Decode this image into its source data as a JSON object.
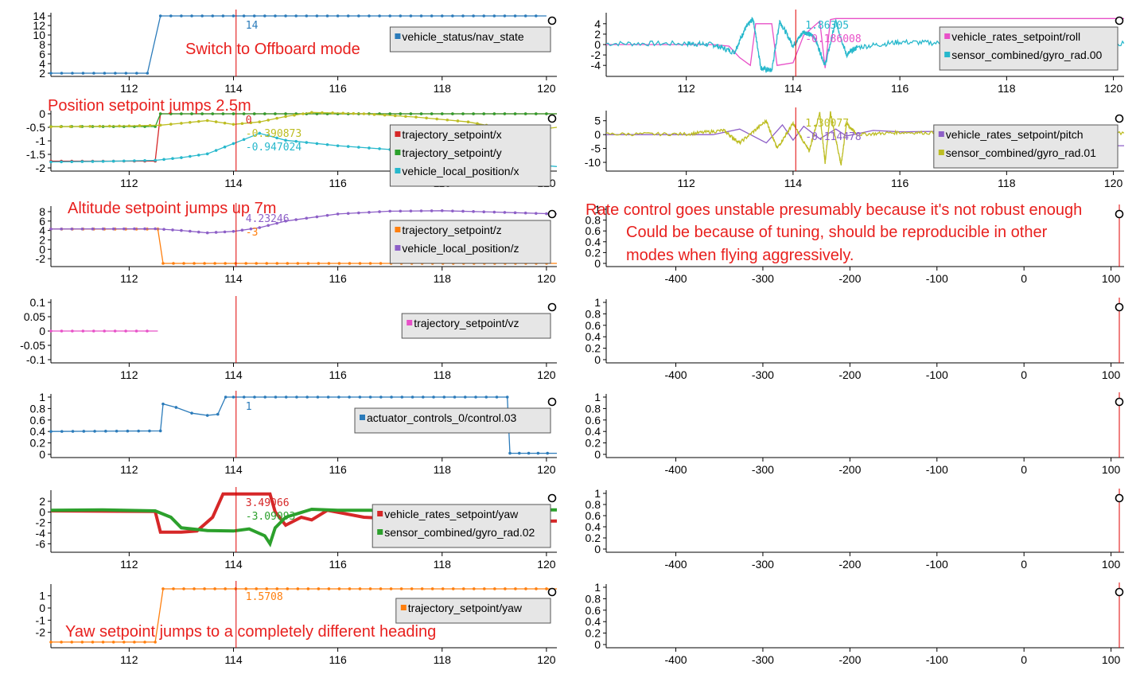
{
  "cursor_time": 114.05,
  "colors": {
    "blue": "#2b7bba",
    "red": "#d62728",
    "green": "#2ca02c",
    "cyan": "#27b8cc",
    "olive": "#bdbd22",
    "orange": "#ff7f0e",
    "purple": "#8d5fc7",
    "pink": "#e850c8",
    "annotation": "#e8201e",
    "cursor": "#e00000"
  },
  "annotations": [
    "Switch to Offboard mode",
    "Position setpoint jumps 2.5m",
    "Altitude setpoint jumps up 7m",
    "Yaw setpoint jumps to a completely different heading",
    "Rate control goes unstable presumably because it's not robust enough",
    "Could be because of tuning, should be reproducible in other",
    "modes when flying aggressively."
  ],
  "chart_data": [
    {
      "id": "L1",
      "type": "line",
      "xlim": [
        110.5,
        120.2
      ],
      "ylim": [
        2,
        14
      ],
      "xticks": [
        "112",
        "114",
        "116",
        "118",
        "120"
      ],
      "yticks": [
        "14",
        "12",
        "10",
        "8",
        "6",
        "4",
        "2"
      ],
      "series": [
        {
          "name": "vehicle_status/nav_state",
          "color": "blue",
          "step": true,
          "markers": true,
          "x": [
            110.5,
            112.35,
            112.6,
            120.0
          ],
          "y": [
            2,
            2,
            14,
            14
          ]
        }
      ],
      "cursor_labels": [
        {
          "text": "14",
          "color": "blue"
        }
      ]
    },
    {
      "id": "L2",
      "type": "line",
      "xlim": [
        110.5,
        120.2
      ],
      "ylim": [
        -2,
        0
      ],
      "xticks": [
        "112",
        "114",
        "116",
        "118",
        "120"
      ],
      "yticks": [
        "0",
        "-0.5",
        "-1",
        "-1.5",
        "-2"
      ],
      "series": [
        {
          "name": "trajectory_setpoint/x",
          "color": "red",
          "markers": true,
          "x": [
            110.5,
            112.5,
            112.6,
            120.2
          ],
          "y": [
            -1.75,
            -1.75,
            0,
            0
          ]
        },
        {
          "name": "trajectory_setpoint/y",
          "color": "green",
          "markers": true,
          "x": [
            110.5,
            112.5,
            112.6,
            120.2
          ],
          "y": [
            -0.47,
            -0.47,
            0,
            0
          ]
        },
        {
          "name": "vehicle_local_position/x",
          "color": "cyan",
          "markers": true,
          "x": [
            110.5,
            111.5,
            112.5,
            113.0,
            113.5,
            114.0,
            114.2,
            114.5,
            115.0,
            116.0,
            117.0,
            118.0,
            119.0,
            120.2
          ],
          "y": [
            -1.78,
            -1.76,
            -1.72,
            -1.62,
            -1.48,
            -1.1,
            -0.95,
            -0.72,
            -0.98,
            -1.18,
            -1.32,
            -1.5,
            -1.75,
            -1.95
          ]
        },
        {
          "name": "",
          "color": "olive",
          "markers": true,
          "x": [
            110.5,
            112.0,
            112.6,
            113.0,
            113.5,
            114.0,
            114.5,
            115.0,
            115.5,
            116.5,
            117.5,
            118.5,
            119.2,
            119.7,
            120.2
          ],
          "y": [
            -0.48,
            -0.45,
            -0.42,
            -0.35,
            -0.25,
            -0.39,
            -0.3,
            -0.1,
            0.05,
            0.0,
            -0.12,
            -0.3,
            -0.55,
            -0.62,
            -0.5
          ]
        }
      ],
      "cursor_labels": [
        {
          "text": "0",
          "color": "red"
        },
        {
          "text": "-0.390873",
          "color": "olive"
        },
        {
          "text": "-0.947024",
          "color": "cyan"
        }
      ]
    },
    {
      "id": "L3",
      "type": "line",
      "xlim": [
        110.5,
        120.2
      ],
      "ylim": [
        -3,
        8.5
      ],
      "xticks": [
        "112",
        "114",
        "116",
        "118",
        "120"
      ],
      "yticks": [
        "8",
        "6",
        "4",
        "2",
        "0",
        "-2"
      ],
      "series": [
        {
          "name": "trajectory_setpoint/z",
          "color": "orange",
          "markers": true,
          "x": [
            110.5,
            112.55,
            112.65,
            120.2
          ],
          "y": [
            4.3,
            4.3,
            -3,
            -3
          ]
        },
        {
          "name": "vehicle_local_position/z",
          "color": "purple",
          "markers": true,
          "x": [
            110.5,
            112.5,
            113.0,
            113.5,
            114.0,
            114.5,
            115.0,
            116.0,
            117.0,
            118.0,
            119.0,
            120.2
          ],
          "y": [
            4.3,
            4.35,
            4.0,
            3.5,
            3.8,
            4.6,
            6.0,
            7.5,
            8.1,
            8.2,
            7.9,
            7.5
          ]
        }
      ],
      "cursor_labels": [
        {
          "text": "4.23246",
          "color": "purple"
        },
        {
          "text": "-3",
          "color": "orange"
        }
      ]
    },
    {
      "id": "L4",
      "type": "line",
      "xlim": [
        110.5,
        120.2
      ],
      "ylim": [
        -0.1,
        0.1
      ],
      "xticks": [
        "112",
        "114",
        "116",
        "118",
        "120"
      ],
      "yticks": [
        "0.1",
        "0.05",
        "0",
        "-0.05",
        "-0.1"
      ],
      "series": [
        {
          "name": "trajectory_setpoint/vz",
          "color": "pink",
          "markers": true,
          "x": [
            110.5,
            112.55
          ],
          "y": [
            0,
            0
          ]
        }
      ],
      "cursor_labels": []
    },
    {
      "id": "L5",
      "type": "line",
      "xlim": [
        110.5,
        120.2
      ],
      "ylim": [
        0,
        1
      ],
      "xticks": [
        "112",
        "114",
        "116",
        "118",
        "120"
      ],
      "yticks": [
        "1",
        "0.8",
        "0.6",
        "0.4",
        "0.2",
        "0"
      ],
      "series": [
        {
          "name": "actuator_controls_0/control.03",
          "color": "blue",
          "markers": true,
          "x": [
            110.5,
            112.6,
            112.65,
            112.9,
            113.2,
            113.5,
            113.7,
            113.85,
            114.0,
            119.25,
            119.3,
            120.2
          ],
          "y": [
            0.4,
            0.41,
            0.88,
            0.82,
            0.72,
            0.68,
            0.7,
            1.0,
            1.0,
            1.0,
            0.02,
            0.02
          ]
        }
      ],
      "cursor_labels": [
        {
          "text": "1",
          "color": "blue"
        }
      ]
    },
    {
      "id": "L6",
      "type": "line",
      "xlim": [
        110.5,
        120.2
      ],
      "ylim": [
        -7,
        3.5
      ],
      "xticks": [
        "112",
        "114",
        "116",
        "118",
        "120"
      ],
      "yticks": [
        "2",
        "0",
        "-2",
        "-4",
        "-6"
      ],
      "series": [
        {
          "name": "vehicle_rates_setpoint/yaw",
          "color": "red",
          "thick": true,
          "x": [
            110.5,
            112.5,
            112.6,
            113.0,
            113.3,
            113.6,
            113.8,
            114.2,
            114.5,
            114.7,
            114.8,
            115.0,
            115.3,
            115.5,
            115.8,
            116.5,
            117.5,
            118.5,
            119.5,
            120.2
          ],
          "y": [
            0.2,
            0.1,
            -3.8,
            -3.8,
            -3.6,
            -1.0,
            3.4,
            3.4,
            3.4,
            3.4,
            0.0,
            -2.5,
            -1.0,
            -1.5,
            0.3,
            -1.0,
            -1.5,
            -1.6,
            -1.8,
            -1.7
          ]
        },
        {
          "name": "sensor_combined/gyro_rad.02",
          "color": "green",
          "thick": true,
          "x": [
            110.5,
            111.5,
            112.5,
            112.8,
            113.0,
            113.5,
            114.0,
            114.3,
            114.6,
            114.7,
            114.8,
            115.0,
            115.5,
            116.0,
            117.0,
            118.0,
            119.0,
            120.2
          ],
          "y": [
            0.3,
            0.4,
            0.2,
            -1.0,
            -3.0,
            -3.5,
            -3.6,
            -3.2,
            -4.5,
            -6.0,
            -3.0,
            -1.0,
            0.5,
            0.3,
            0.3,
            0.4,
            0.4,
            0.4
          ]
        }
      ],
      "cursor_labels": [
        {
          "text": "3.49066",
          "color": "red"
        },
        {
          "text": "-3.09093",
          "color": "green"
        }
      ]
    },
    {
      "id": "L7",
      "type": "line",
      "xlim": [
        110.5,
        120.2
      ],
      "ylim": [
        -3,
        1.7
      ],
      "xticks": [
        "112",
        "114",
        "116",
        "118",
        "120"
      ],
      "yticks": [
        "1",
        "0",
        "-1",
        "-2"
      ],
      "series": [
        {
          "name": "trajectory_setpoint/yaw",
          "color": "orange",
          "markers": true,
          "x": [
            110.5,
            112.5,
            112.65,
            120.2
          ],
          "y": [
            -2.8,
            -2.8,
            1.5708,
            1.5708
          ]
        }
      ],
      "cursor_labels": [
        {
          "text": "1.5708",
          "color": "orange"
        }
      ]
    },
    {
      "id": "R1",
      "type": "line",
      "xlim": [
        110.5,
        120.2
      ],
      "ylim": [
        -5.5,
        5.5
      ],
      "xticks": [
        "112",
        "114",
        "116",
        "118",
        "120"
      ],
      "yticks": [
        "4",
        "2",
        "0",
        "-2",
        "-4"
      ],
      "series": [
        {
          "name": "vehicle_rates_setpoint/roll",
          "color": "pink",
          "x": [
            110.5,
            112.5,
            112.8,
            113.0,
            113.2,
            113.3,
            113.6,
            113.7,
            114.0,
            114.2,
            114.5,
            114.6,
            114.7,
            114.8,
            115.0,
            115.3,
            116.0,
            117.0,
            118.0,
            119.0,
            120.2
          ],
          "y": [
            0,
            0,
            -0.3,
            -2.5,
            -4.0,
            4.0,
            4.0,
            -4.0,
            -3.5,
            1.8,
            4.5,
            -4.5,
            4.8,
            5.0,
            5.0,
            5.0,
            5.0,
            5.0,
            5.0,
            5.0,
            5.0
          ]
        },
        {
          "name": "sensor_combined/gyro_rad.00",
          "color": "cyan",
          "noise": 0.5,
          "x": [
            110.5,
            112.0,
            112.5,
            112.9,
            113.1,
            113.25,
            113.4,
            113.6,
            113.75,
            114.0,
            114.2,
            114.4,
            114.6,
            114.8,
            115.0,
            115.2,
            116.0,
            117.0,
            118.0,
            119.0,
            120.2
          ],
          "y": [
            0.2,
            0.2,
            0.0,
            -1.5,
            3.0,
            5.0,
            -4.5,
            -5.0,
            4.5,
            -0.2,
            2.5,
            1.5,
            -4.0,
            4.5,
            -2.0,
            -0.5,
            0.5,
            0.2,
            0.2,
            0.2,
            0.2
          ]
        }
      ],
      "cursor_labels": [
        {
          "text": "1.86305",
          "color": "cyan"
        },
        {
          "text": "-0.186008",
          "color": "pink"
        }
      ]
    },
    {
      "id": "R2",
      "type": "line",
      "xlim": [
        110.5,
        120.2
      ],
      "ylim": [
        -12,
        7.5
      ],
      "xticks": [
        "112",
        "114",
        "116",
        "118",
        "120"
      ],
      "yticks": [
        "5",
        "0",
        "-5",
        "-10"
      ],
      "series": [
        {
          "name": "vehicle_rates_setpoint/pitch",
          "color": "purple",
          "x": [
            110.5,
            112.5,
            113.0,
            113.5,
            113.8,
            114.0,
            114.2,
            114.5,
            114.8,
            115.0,
            115.5,
            116.0,
            118.0,
            119.0,
            119.5,
            120.2
          ],
          "y": [
            0,
            0,
            2.0,
            -3.0,
            3.5,
            -2.0,
            3.0,
            -1.5,
            2.0,
            -0.5,
            1.5,
            1.0,
            1.5,
            2.0,
            -4.0,
            -4.0
          ]
        },
        {
          "name": "sensor_combined/gyro_rad.01",
          "color": "olive",
          "noise": 0.6,
          "x": [
            110.5,
            112.0,
            112.7,
            113.0,
            113.5,
            113.7,
            114.0,
            114.3,
            114.5,
            114.6,
            114.7,
            114.9,
            115.0,
            115.2,
            116.0,
            117.0,
            118.0,
            119.0,
            120.2
          ],
          "y": [
            0.2,
            0.2,
            1.5,
            -3.0,
            5.0,
            -5.0,
            4.0,
            -6.0,
            8.0,
            -10.0,
            8.0,
            -11.0,
            4.0,
            0.0,
            0.8,
            0.5,
            0.5,
            0.5,
            0.5
          ]
        }
      ],
      "cursor_labels": [
        {
          "text": "1.30077",
          "color": "olive"
        },
        {
          "text": "-0.114478",
          "color": "purple"
        }
      ]
    },
    {
      "id": "R3",
      "type": "line",
      "xlim": [
        -480,
        115
      ],
      "ylim": [
        0,
        1
      ],
      "xticks": [
        "-400",
        "-300",
        "-200",
        "-100",
        "0",
        "100"
      ],
      "yticks": [
        "1",
        "0.8",
        "0.6",
        "0.4",
        "0.2",
        "0"
      ],
      "series": [],
      "cursor_labels": []
    },
    {
      "id": "R4",
      "type": "line",
      "xlim": [
        -480,
        115
      ],
      "ylim": [
        0,
        1
      ],
      "xticks": [
        "-400",
        "-300",
        "-200",
        "-100",
        "0",
        "100"
      ],
      "yticks": [
        "1",
        "0.8",
        "0.6",
        "0.4",
        "0.2",
        "0"
      ],
      "series": [],
      "cursor_labels": []
    },
    {
      "id": "R5",
      "type": "line",
      "xlim": [
        -480,
        115
      ],
      "ylim": [
        0,
        1
      ],
      "xticks": [
        "-400",
        "-300",
        "-200",
        "-100",
        "0",
        "100"
      ],
      "yticks": [
        "1",
        "0.8",
        "0.6",
        "0.4",
        "0.2",
        "0"
      ],
      "series": [],
      "cursor_labels": []
    },
    {
      "id": "R6",
      "type": "line",
      "xlim": [
        -480,
        115
      ],
      "ylim": [
        0,
        1
      ],
      "xticks": [
        "-400",
        "-300",
        "-200",
        "-100",
        "0",
        "100"
      ],
      "yticks": [
        "1",
        "0.8",
        "0.6",
        "0.4",
        "0.2",
        "0"
      ],
      "series": [],
      "cursor_labels": []
    },
    {
      "id": "R7",
      "type": "line",
      "xlim": [
        -480,
        115
      ],
      "ylim": [
        0,
        1
      ],
      "xticks": [
        "-400",
        "-300",
        "-200",
        "-100",
        "0",
        "100"
      ],
      "yticks": [
        "1",
        "0.8",
        "0.6",
        "0.4",
        "0.2",
        "0"
      ],
      "series": [],
      "cursor_labels": []
    }
  ]
}
